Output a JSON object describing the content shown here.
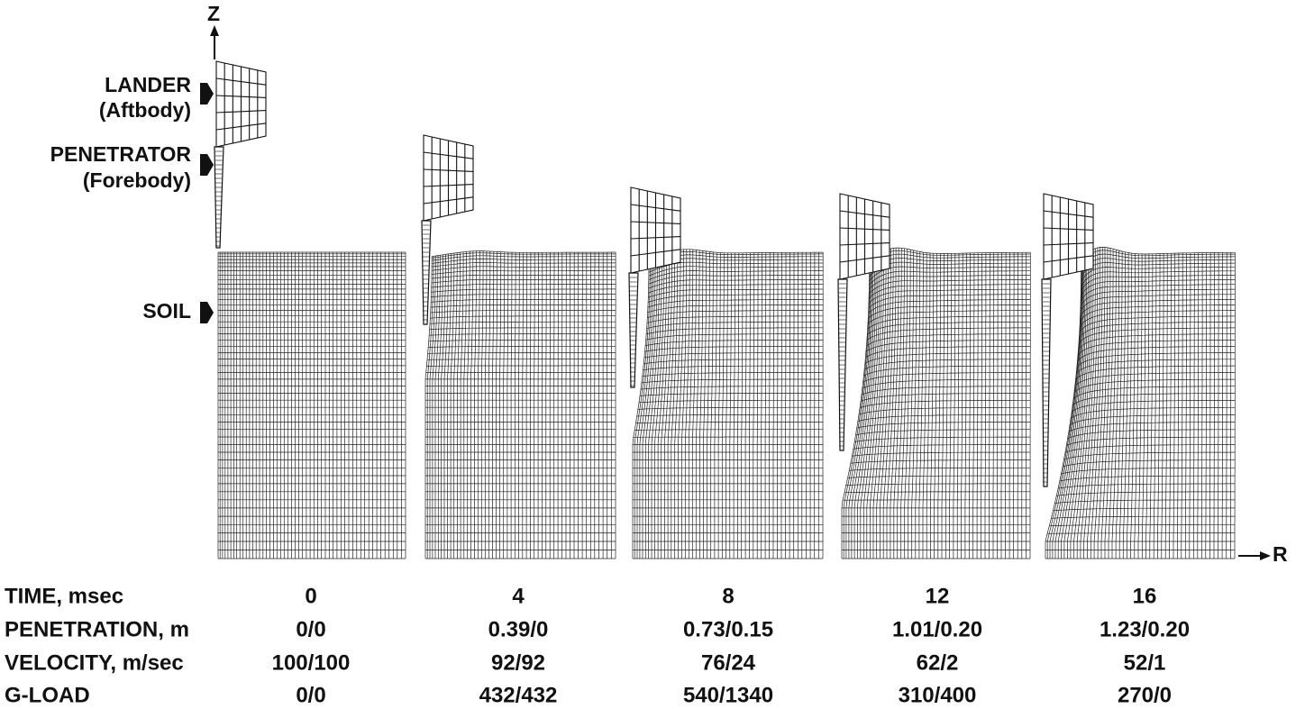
{
  "axes": {
    "z": "Z",
    "r": "R"
  },
  "labels": {
    "lander": {
      "name": "LANDER",
      "note": "(Aftbody)"
    },
    "penetrator": {
      "name": "PENETRATOR",
      "note": "(Forebody)"
    },
    "soil": {
      "name": "SOIL"
    }
  },
  "table": {
    "rows": [
      {
        "label": "TIME, msec",
        "values": [
          "0",
          "4",
          "8",
          "12",
          "16"
        ]
      },
      {
        "label": "PENETRATION, m",
        "values": [
          "0/0",
          "0.39/0",
          "0.73/0.15",
          "1.01/0.20",
          "1.23/0.20"
        ]
      },
      {
        "label": "VELOCITY, m/sec",
        "values": [
          "100/100",
          "92/92",
          "76/24",
          "62/2",
          "52/1"
        ]
      },
      {
        "label": "G-LOAD",
        "values": [
          "0/0",
          "432/432",
          "540/1340",
          "310/400",
          "270/0"
        ]
      }
    ]
  }
}
